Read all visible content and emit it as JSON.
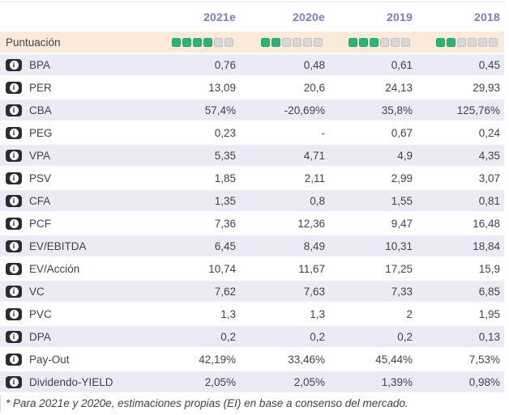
{
  "header": {
    "columns": [
      "2021e",
      "2020e",
      "2019",
      "2018"
    ]
  },
  "score_row": {
    "label": "Puntuación",
    "max": 6,
    "scores": [
      4,
      2,
      3,
      2
    ]
  },
  "rows": [
    {
      "label": "BPA",
      "values": [
        "0,76",
        "0,48",
        "0,61",
        "0,45"
      ]
    },
    {
      "label": "PER",
      "values": [
        "13,09",
        "20,6",
        "24,13",
        "29,93"
      ]
    },
    {
      "label": "CBA",
      "values": [
        "57,4%",
        "-20,69%",
        "35,8%",
        "125,76%"
      ]
    },
    {
      "label": "PEG",
      "values": [
        "0,23",
        "-",
        "0,67",
        "0,24"
      ]
    },
    {
      "label": "VPA",
      "values": [
        "5,35",
        "4,71",
        "4,9",
        "4,35"
      ]
    },
    {
      "label": "PSV",
      "values": [
        "1,85",
        "2,11",
        "2,99",
        "3,07"
      ]
    },
    {
      "label": "CFA",
      "values": [
        "1,35",
        "0,8",
        "1,55",
        "0,81"
      ]
    },
    {
      "label": "PCF",
      "values": [
        "7,36",
        "12,36",
        "9,47",
        "16,48"
      ]
    },
    {
      "label": "EV/EBITDA",
      "values": [
        "6,45",
        "8,49",
        "10,31",
        "18,84"
      ]
    },
    {
      "label": "EV/Acción",
      "values": [
        "10,74",
        "11,67",
        "17,25",
        "15,9"
      ]
    },
    {
      "label": "VC",
      "values": [
        "7,62",
        "7,63",
        "7,33",
        "6,85"
      ]
    },
    {
      "label": "PVC",
      "values": [
        "1,3",
        "1,3",
        "2",
        "1,95"
      ]
    },
    {
      "label": "DPA",
      "values": [
        "0,2",
        "0,2",
        "0,2",
        "0,13"
      ]
    },
    {
      "label": "Pay-Out",
      "values": [
        "42,19%",
        "33,46%",
        "45,44%",
        "7,53%"
      ]
    },
    {
      "label": "Dividendo-YIELD",
      "values": [
        "2,05%",
        "2,05%",
        "1,39%",
        "0,98%"
      ]
    }
  ],
  "footnote": "* Para 2021e y 2020e, estimaciones propias (EI) en base a consenso del mercado.",
  "icons": {
    "info": "info-icon",
    "info_glyph": "i"
  },
  "colors": {
    "text": "#3f4254",
    "headerText": "#7a7fb6",
    "lavender": "#eaebf4",
    "peach": "#fbe9d9",
    "green": "#2eb377",
    "squareGray": "#d9d7d9",
    "iconBg": "#2c2c33",
    "rule": "#e3e3e8"
  }
}
